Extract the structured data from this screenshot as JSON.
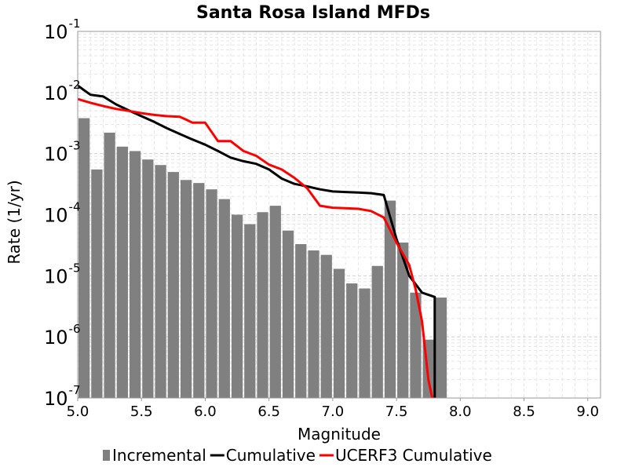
{
  "chart_data": {
    "type": "bar",
    "title": "Santa Rosa Island MFDs",
    "xlabel": "Magnitude",
    "ylabel": "Rate (1/yr)",
    "xlim": [
      5.0,
      9.1
    ],
    "ylim": [
      1e-07,
      0.1
    ],
    "y_scale": "log",
    "grid": true,
    "legend_position": "bottom",
    "x_ticks": [
      "5.0",
      "5.5",
      "6.0",
      "6.5",
      "7.0",
      "7.5",
      "8.0",
      "8.5",
      "9.0"
    ],
    "y_ticks": [
      {
        "base": "10",
        "exp": "-7"
      },
      {
        "base": "10",
        "exp": "-6"
      },
      {
        "base": "10",
        "exp": "-5"
      },
      {
        "base": "10",
        "exp": "-4"
      },
      {
        "base": "10",
        "exp": "-3"
      },
      {
        "base": "10",
        "exp": "-2"
      },
      {
        "base": "10",
        "exp": "-1"
      }
    ],
    "series": [
      {
        "name": "Incremental",
        "kind": "bar",
        "color": "#808080",
        "x": [
          5.05,
          5.15,
          5.25,
          5.35,
          5.45,
          5.55,
          5.65,
          5.75,
          5.85,
          5.95,
          6.05,
          6.15,
          6.25,
          6.35,
          6.45,
          6.55,
          6.65,
          6.75,
          6.85,
          6.95,
          7.05,
          7.15,
          7.25,
          7.35,
          7.45,
          7.55,
          7.65,
          7.75,
          7.85
        ],
        "y": [
          0.0038,
          0.00055,
          0.0022,
          0.0013,
          0.0011,
          0.0008,
          0.00065,
          0.0005,
          0.00037,
          0.00033,
          0.00026,
          0.00018,
          0.0001,
          7e-05,
          0.00011,
          0.00014,
          5.5e-05,
          3.3e-05,
          2.6e-05,
          2.2e-05,
          1.3e-05,
          7.5e-06,
          6.2e-06,
          1.45e-05,
          0.00017,
          3.5e-05,
          5.3e-06,
          9e-07,
          4.4e-06
        ]
      },
      {
        "name": "Cumulative",
        "kind": "line",
        "color": "#000000",
        "x": [
          5.0,
          5.1,
          5.2,
          5.3,
          5.4,
          5.5,
          5.6,
          5.7,
          5.8,
          5.9,
          6.0,
          6.1,
          6.2,
          6.3,
          6.4,
          6.5,
          6.6,
          6.7,
          6.8,
          6.9,
          7.0,
          7.1,
          7.2,
          7.3,
          7.4,
          7.5,
          7.6,
          7.7,
          7.8,
          7.8
        ],
        "y": [
          0.013,
          0.0092,
          0.0086,
          0.0064,
          0.0051,
          0.0041,
          0.0033,
          0.0026,
          0.0021,
          0.0017,
          0.0014,
          0.0011,
          0.00086,
          0.00075,
          0.00068,
          0.00055,
          0.00039,
          0.00032,
          0.00029,
          0.00026,
          0.00024,
          0.000235,
          0.00023,
          0.000225,
          0.00021,
          4e-05,
          1e-05,
          5.3e-06,
          4.5e-06,
          1e-07
        ]
      },
      {
        "name": "UCERF3 Cumulative",
        "kind": "line",
        "color": "#ff0000",
        "x": [
          5.0,
          5.1,
          5.2,
          5.3,
          5.4,
          5.5,
          5.6,
          5.7,
          5.8,
          5.85,
          5.9,
          6.0,
          6.1,
          6.2,
          6.3,
          6.4,
          6.5,
          6.6,
          6.7,
          6.8,
          6.9,
          7.0,
          7.1,
          7.2,
          7.3,
          7.4,
          7.5,
          7.6,
          7.65,
          7.7,
          7.75,
          7.78
        ],
        "y": [
          0.0078,
          0.0068,
          0.006,
          0.0054,
          0.005,
          0.0046,
          0.0043,
          0.0041,
          0.004,
          0.0036,
          0.0032,
          0.0032,
          0.0016,
          0.0016,
          0.0011,
          0.00092,
          0.00066,
          0.00055,
          0.0004,
          0.00027,
          0.00014,
          0.00013,
          0.000128,
          0.000125,
          0.000115,
          9e-05,
          3.5e-05,
          1.5e-05,
          6e-06,
          1.8e-06,
          2e-07,
          1e-07
        ]
      }
    ]
  }
}
